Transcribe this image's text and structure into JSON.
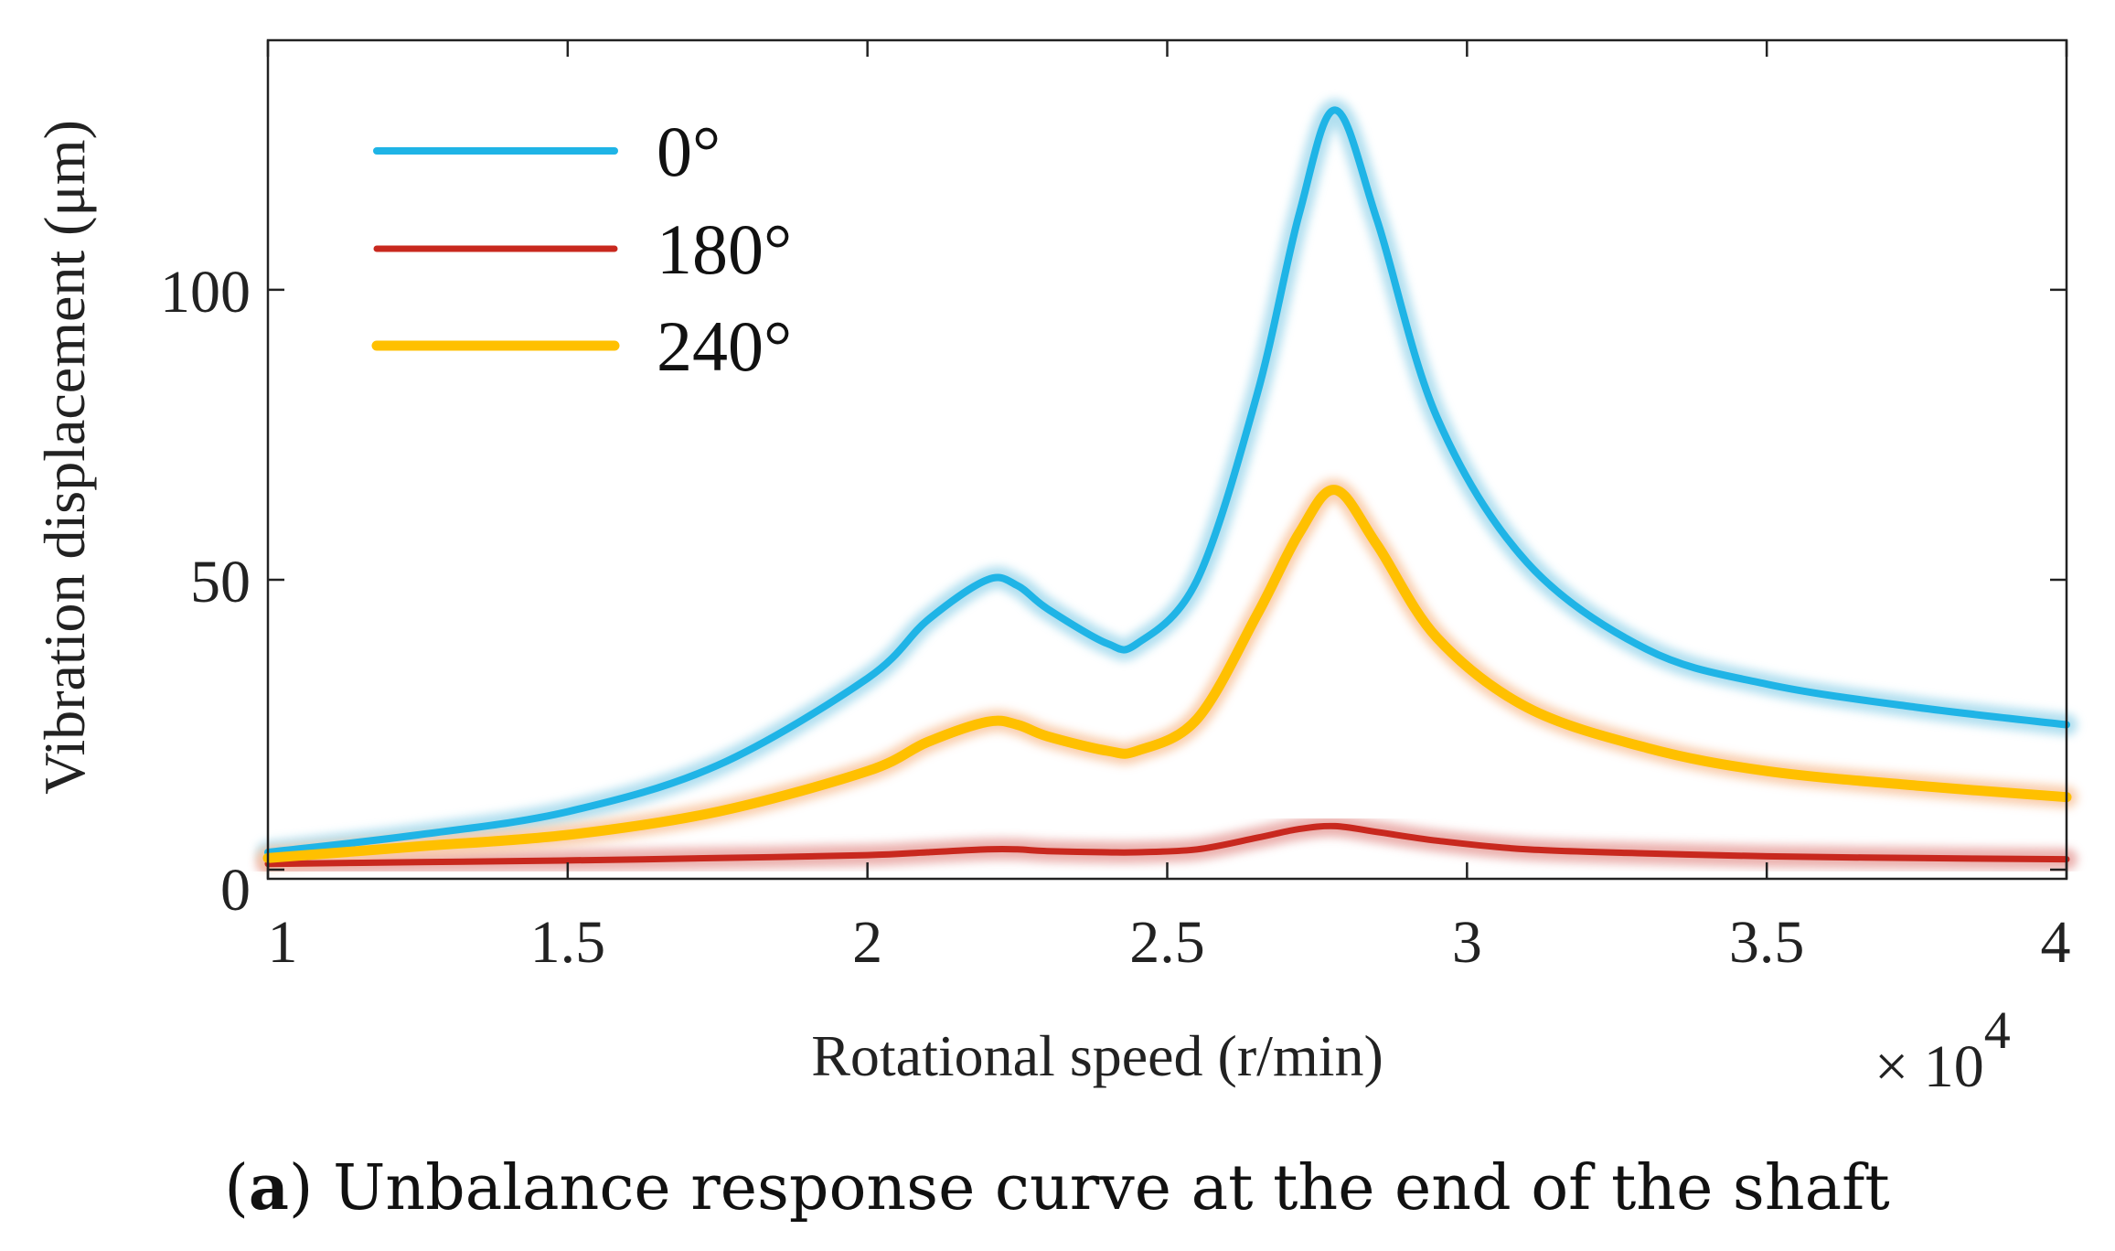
{
  "chart_data": {
    "type": "line",
    "xlabel": "Rotational speed (r/min)",
    "ylabel": "Vibration displacement (μm)",
    "x_multiplier_label": "× 10",
    "x_multiplier_exponent": "4",
    "xlim": [
      1,
      4
    ],
    "ylim": [
      0,
      135
    ],
    "xticks": [
      "1",
      "1.5",
      "2",
      "2.5",
      "3",
      "3.5",
      "4"
    ],
    "yticks": [
      "0",
      "50",
      "100"
    ],
    "grid": false,
    "legend_position": "top-left",
    "caption": {
      "prefix": "(",
      "bold": "a",
      "text": ") Unbalance response curve at the end of the shaft"
    },
    "x": [
      1.0,
      1.25,
      1.5,
      1.75,
      2.0,
      2.1,
      2.2,
      2.25,
      2.3,
      2.4,
      2.45,
      2.55,
      2.65,
      2.72,
      2.78,
      2.85,
      2.95,
      3.1,
      3.3,
      3.5,
      3.75,
      4.0
    ],
    "series": [
      {
        "name": "0°",
        "color": "#1fb4e6",
        "glow": "#a9dcee",
        "values": [
          3,
          6,
          10,
          18,
          33,
          43,
          50,
          49,
          45,
          39,
          39,
          50,
          82,
          113,
          131,
          112,
          78,
          53,
          38,
          32,
          28,
          25
        ]
      },
      {
        "name": "180°",
        "color": "#c8281e",
        "glow": "#e9a9a6",
        "values": [
          1,
          1.3,
          1.6,
          2,
          2.5,
          3,
          3.5,
          3.5,
          3.2,
          3,
          3,
          3.5,
          5.5,
          7,
          7.5,
          6.5,
          5,
          3.5,
          2.8,
          2.3,
          2,
          1.8
        ]
      },
      {
        "name": "240°",
        "color": "#ffc000",
        "glow": "#f9c9a6",
        "values": [
          2,
          4,
          6,
          10,
          17,
          22,
          25.5,
          25,
          23,
          20.5,
          20.5,
          26,
          44,
          58,
          65.5,
          56,
          40,
          28,
          21,
          17,
          14.5,
          12.5
        ]
      }
    ]
  }
}
